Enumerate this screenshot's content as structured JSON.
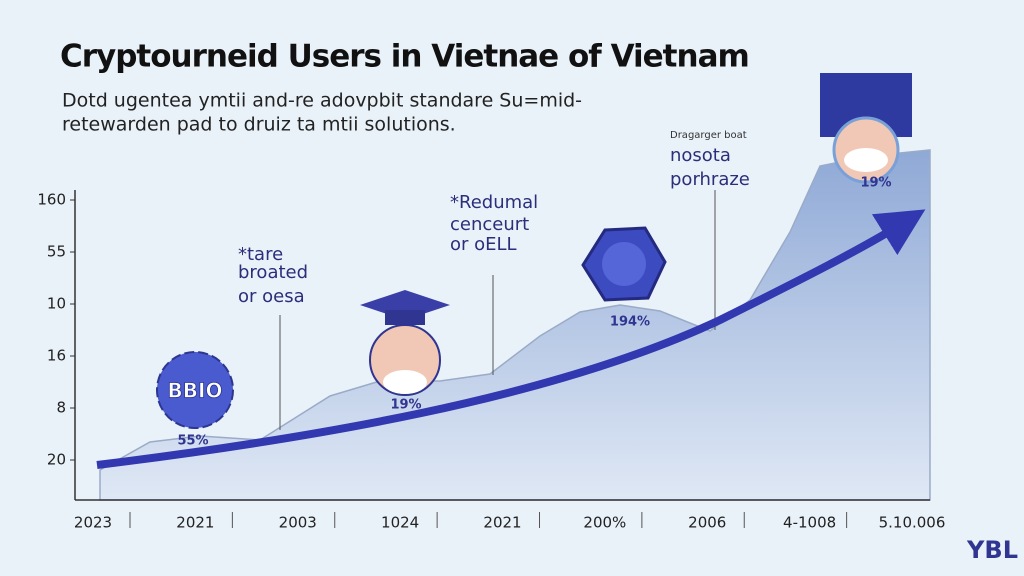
{
  "header": {
    "title": "Cryptourneid Users in Vietnae of Vietnam",
    "subtitle": [
      "Dotd ugentea ymtii and-re adovpbit standare Su=mid-",
      "retewarden pad to druiz ta mtii solutions."
    ]
  },
  "y_labels": [
    "160",
    "55",
    "10",
    "16",
    "8",
    "20"
  ],
  "x_labels": [
    "2023",
    "2021",
    "2003",
    "1024",
    "2021",
    "200%",
    "2006",
    "4-1008",
    "5.10.006"
  ],
  "annotations": [
    {
      "lines": [
        "*tare",
        "broated",
        "or oesa"
      ]
    },
    {
      "lines": [
        "*Redumal",
        "cenceurt",
        "or oELL"
      ]
    },
    {
      "lines": [
        "Dragarger boat",
        "nosota",
        "porhraze"
      ]
    }
  ],
  "badges": [
    {
      "label": "BBIO",
      "value": "55%"
    },
    {
      "value": "19%"
    },
    {
      "value": "194%"
    },
    {
      "value": "19%"
    }
  ],
  "brand": "YBL"
}
